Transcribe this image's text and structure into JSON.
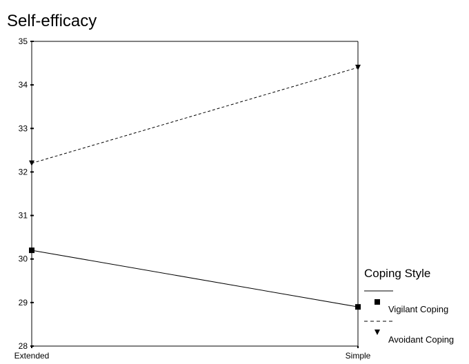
{
  "chart_data": {
    "type": "line",
    "title": "Self-efficacy",
    "xlabel": "",
    "ylabel": "",
    "categories": [
      "Extended",
      "Simple"
    ],
    "ylim": [
      28,
      35
    ],
    "yticks": [
      "28",
      "29",
      "30",
      "31",
      "32",
      "33",
      "34",
      "35"
    ],
    "grid": false,
    "legend": {
      "title": "Coping Style",
      "placement": "bottom-right"
    },
    "series": [
      {
        "name": "Vigilant Coping",
        "values": [
          30.2,
          28.9
        ],
        "line_style": "solid",
        "marker": "square",
        "color": "#000000"
      },
      {
        "name": "Avoidant Coping",
        "values": [
          32.2,
          34.4
        ],
        "line_style": "dashed",
        "marker": "triangle-down",
        "color": "#000000"
      }
    ]
  }
}
